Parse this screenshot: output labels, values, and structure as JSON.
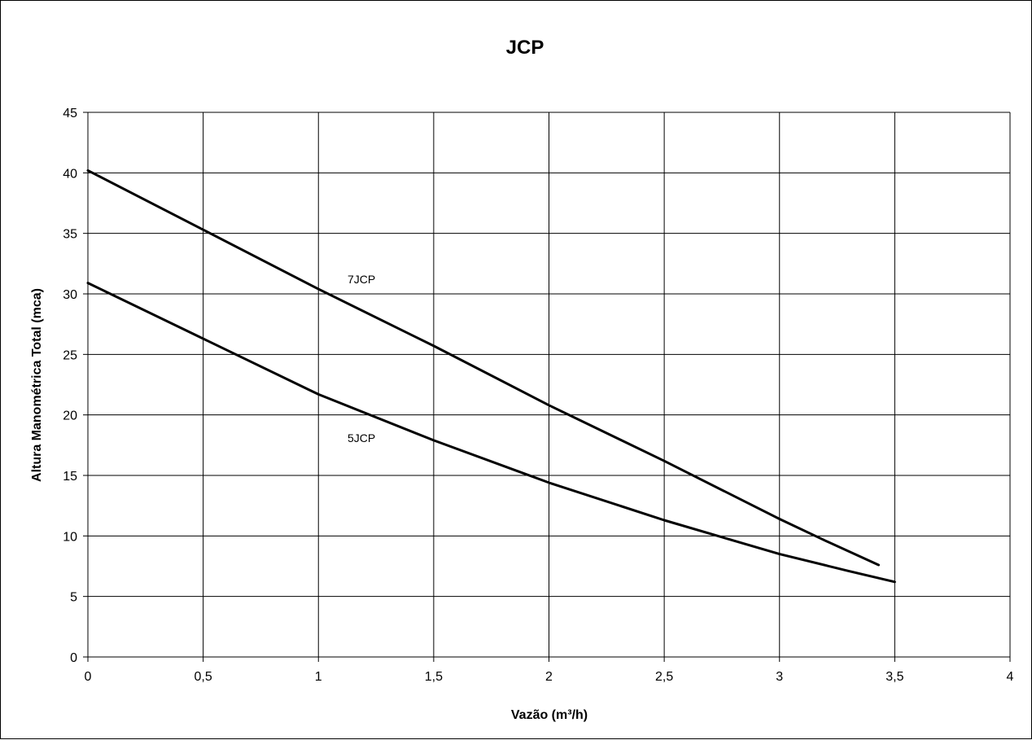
{
  "chart_data": {
    "type": "line",
    "title": "JCP",
    "xlabel": "Vazão (m³/h)",
    "ylabel": "Altura Manométrica Total (mca)",
    "xlim": [
      0,
      4
    ],
    "ylim": [
      0,
      45
    ],
    "x_ticks": [
      "0",
      "0,5",
      "1",
      "1,5",
      "2",
      "2,5",
      "3",
      "3,5",
      "4"
    ],
    "y_ticks": [
      "0",
      "5",
      "10",
      "15",
      "20",
      "25",
      "30",
      "35",
      "40",
      "45"
    ],
    "grid": true,
    "series": [
      {
        "name": "7JCP",
        "x": [
          0,
          0.5,
          1.0,
          1.5,
          2.0,
          2.5,
          3.0,
          3.2,
          3.43
        ],
        "y": [
          40.2,
          35.3,
          30.4,
          25.7,
          20.8,
          16.2,
          11.4,
          9.6,
          7.6
        ]
      },
      {
        "name": "5JCP",
        "x": [
          0,
          0.5,
          1.0,
          1.5,
          2.0,
          2.5,
          3.0,
          3.3,
          3.5
        ],
        "y": [
          30.9,
          26.3,
          21.7,
          17.9,
          14.4,
          11.3,
          8.5,
          7.1,
          6.2
        ]
      }
    ]
  }
}
